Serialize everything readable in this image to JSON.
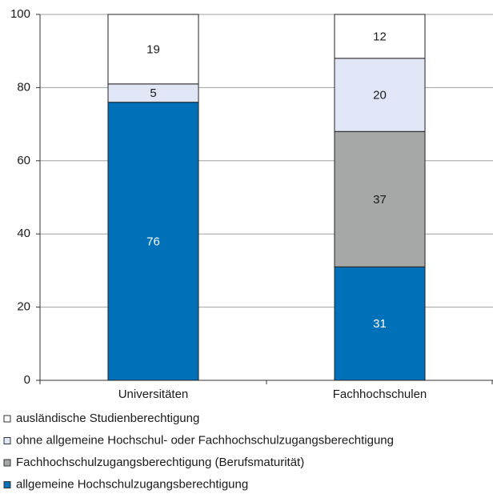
{
  "chart_data": {
    "type": "stacked_bar",
    "categories": [
      "Universitäten",
      "Fachhochschulen"
    ],
    "series": [
      {
        "name": "allgemeine Hochschulzugangsberechtigung",
        "color": "#0070b8",
        "values": [
          76,
          31
        ]
      },
      {
        "name": "Fachhochschulzugangsberechtigung (Berufsmaturität)",
        "color": "#a6a8a7",
        "values": [
          null,
          37
        ]
      },
      {
        "name": "ohne allgemeine Hochschul- oder Fachhochschulzugangsberechtigung",
        "color": "#e0e6f6",
        "values": [
          5,
          20
        ]
      },
      {
        "name": "ausländische Studienberechtigung",
        "color": "#ffffff",
        "values": [
          19,
          12
        ]
      }
    ],
    "ylim": [
      0,
      100
    ],
    "yticks": [
      0,
      20,
      40,
      60,
      80,
      100
    ],
    "grid": true
  }
}
